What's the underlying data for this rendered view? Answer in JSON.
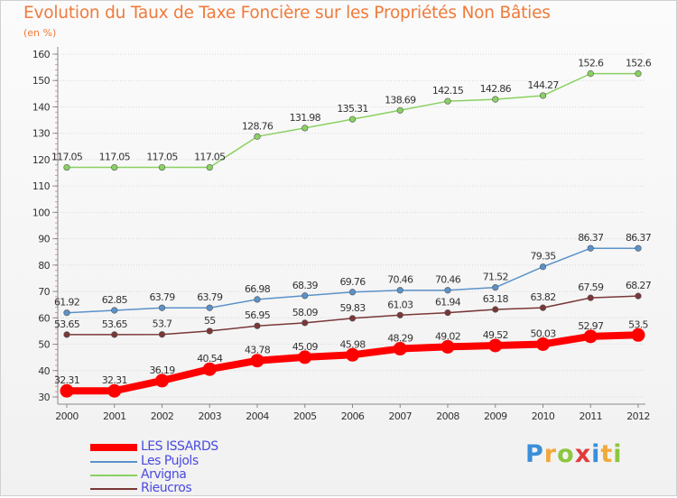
{
  "title": "Evolution du Taux de Taxe Foncière sur les Propriétés Non Bâties",
  "unit_label": "(en %)",
  "logo_text": "Proxiti",
  "colors": {
    "title": "#f07a3a",
    "legend_text": "#4a4ae0",
    "axis_text": "#333333",
    "grid": "#d8d8d8"
  },
  "chart_data": {
    "type": "line",
    "x": [
      "2000",
      "2001",
      "2002",
      "2003",
      "2004",
      "2005",
      "2006",
      "2007",
      "2008",
      "2009",
      "2010",
      "2011",
      "2012"
    ],
    "ylim": [
      30,
      160
    ],
    "yticks": [
      30,
      40,
      50,
      60,
      70,
      80,
      90,
      100,
      110,
      120,
      130,
      140,
      150,
      160
    ],
    "grid": true,
    "legend_position": "bottom-left",
    "series": [
      {
        "name": "LES ISSARDS",
        "color": "#ff0000",
        "highlight": true,
        "values": [
          32.31,
          32.31,
          36.19,
          40.54,
          43.78,
          45.09,
          45.98,
          48.29,
          49.02,
          49.52,
          50.03,
          52.97,
          53.5
        ],
        "labels": [
          "32.31",
          "32.31",
          "36.19",
          "40.54",
          "43.78",
          "45.09",
          "45.98",
          "48.29",
          "49.02",
          "49.52",
          "50.03",
          "52.97",
          "53.5"
        ]
      },
      {
        "name": "Les Pujols",
        "color": "#5b92c9",
        "highlight": false,
        "values": [
          61.92,
          62.85,
          63.79,
          63.79,
          66.98,
          68.39,
          69.76,
          70.46,
          70.46,
          71.52,
          79.35,
          86.37,
          86.37
        ],
        "labels": [
          "61.92",
          "62.85",
          "63.79",
          "63.79",
          "66.98",
          "68.39",
          "69.76",
          "70.46",
          "70.46",
          "71.52",
          "79.35",
          "86.37",
          "86.37"
        ]
      },
      {
        "name": "Arvigna",
        "color": "#8ad162",
        "highlight": false,
        "values": [
          117.05,
          117.05,
          117.05,
          117.05,
          128.76,
          131.98,
          135.31,
          138.69,
          142.15,
          142.86,
          144.27,
          152.6,
          152.6
        ],
        "labels": [
          "117.05",
          "117.05",
          "117.05",
          "117.05",
          "128.76",
          "131.98",
          "135.31",
          "138.69",
          "142.15",
          "142.86",
          "144.27",
          "152.6",
          "152.6"
        ]
      },
      {
        "name": "Rieucros",
        "color": "#7a3737",
        "highlight": false,
        "values": [
          53.65,
          53.65,
          53.7,
          55,
          56.95,
          58.09,
          59.83,
          61.03,
          61.94,
          63.18,
          63.82,
          67.59,
          68.27
        ],
        "labels": [
          "53.65",
          "53.65",
          "53.7",
          "55",
          "56.95",
          "58.09",
          "59.83",
          "61.03",
          "61.94",
          "63.18",
          "63.82",
          "67.59",
          "68.27"
        ]
      }
    ]
  }
}
